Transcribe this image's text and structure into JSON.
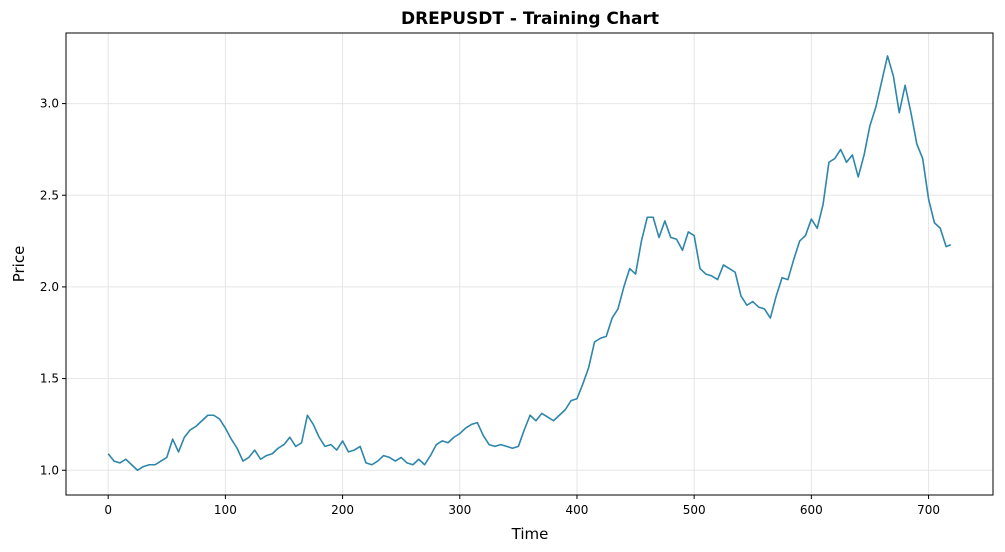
{
  "chart_data": {
    "type": "line",
    "title": "DREPUSDT - Training Chart",
    "xlabel": "Time",
    "ylabel": "Price",
    "x": [
      0,
      5,
      10,
      15,
      20,
      25,
      30,
      35,
      40,
      45,
      50,
      55,
      60,
      65,
      70,
      75,
      80,
      85,
      90,
      95,
      100,
      105,
      110,
      115,
      120,
      125,
      130,
      135,
      140,
      145,
      150,
      155,
      160,
      165,
      170,
      175,
      180,
      185,
      190,
      195,
      200,
      205,
      210,
      215,
      220,
      225,
      230,
      235,
      240,
      245,
      250,
      255,
      260,
      265,
      270,
      275,
      280,
      285,
      290,
      295,
      300,
      305,
      310,
      315,
      320,
      325,
      330,
      335,
      340,
      345,
      350,
      355,
      360,
      365,
      370,
      375,
      380,
      385,
      390,
      395,
      400,
      405,
      410,
      415,
      420,
      425,
      430,
      435,
      440,
      445,
      450,
      455,
      460,
      465,
      470,
      475,
      480,
      485,
      490,
      495,
      500,
      505,
      510,
      515,
      520,
      525,
      530,
      535,
      540,
      545,
      550,
      555,
      560,
      565,
      570,
      575,
      580,
      585,
      590,
      595,
      600,
      605,
      610,
      615,
      620,
      625,
      630,
      635,
      640,
      645,
      650,
      655,
      660,
      665,
      670,
      675,
      680,
      685,
      690,
      695,
      700,
      705,
      710,
      715,
      719
    ],
    "series": [
      {
        "name": "Price",
        "color": "#2e86ab",
        "values": [
          1.09,
          1.05,
          1.04,
          1.06,
          1.03,
          1.0,
          1.02,
          1.03,
          1.03,
          1.05,
          1.07,
          1.17,
          1.1,
          1.18,
          1.22,
          1.24,
          1.27,
          1.3,
          1.3,
          1.28,
          1.23,
          1.17,
          1.12,
          1.05,
          1.07,
          1.11,
          1.06,
          1.08,
          1.09,
          1.12,
          1.14,
          1.18,
          1.13,
          1.15,
          1.3,
          1.25,
          1.18,
          1.13,
          1.14,
          1.11,
          1.16,
          1.1,
          1.11,
          1.13,
          1.04,
          1.03,
          1.05,
          1.08,
          1.07,
          1.05,
          1.07,
          1.04,
          1.03,
          1.06,
          1.03,
          1.08,
          1.14,
          1.16,
          1.15,
          1.18,
          1.2,
          1.23,
          1.25,
          1.26,
          1.19,
          1.14,
          1.13,
          1.14,
          1.13,
          1.12,
          1.13,
          1.22,
          1.3,
          1.27,
          1.31,
          1.29,
          1.27,
          1.3,
          1.33,
          1.38,
          1.39,
          1.47,
          1.56,
          1.7,
          1.72,
          1.73,
          1.83,
          1.88,
          2.0,
          2.1,
          2.07,
          2.25,
          2.38,
          2.38,
          2.27,
          2.36,
          2.27,
          2.26,
          2.2,
          2.3,
          2.28,
          2.1,
          2.07,
          2.06,
          2.04,
          2.12,
          2.1,
          2.08,
          1.95,
          1.9,
          1.92,
          1.89,
          1.88,
          1.83,
          1.95,
          2.05,
          2.04,
          2.15,
          2.25,
          2.28,
          2.37,
          2.32,
          2.45,
          2.68,
          2.7,
          2.75,
          2.68,
          2.72,
          2.6,
          2.72,
          2.88,
          2.98,
          3.12,
          3.26,
          3.15,
          2.95,
          3.1,
          2.95,
          2.78,
          2.7,
          2.48,
          2.35,
          2.32,
          2.22,
          2.23
        ]
      }
    ],
    "xlim": [
      -36,
      755
    ],
    "ylim": [
      0.865,
      3.385
    ],
    "xticks": [
      0,
      100,
      200,
      300,
      400,
      500,
      600,
      700
    ],
    "yticks": [
      {
        "value": 1,
        "label": "1.0"
      },
      1.5,
      {
        "value": 2,
        "label": "2.0"
      },
      2.5,
      {
        "value": 3,
        "label": "3.0"
      }
    ],
    "grid": true
  }
}
